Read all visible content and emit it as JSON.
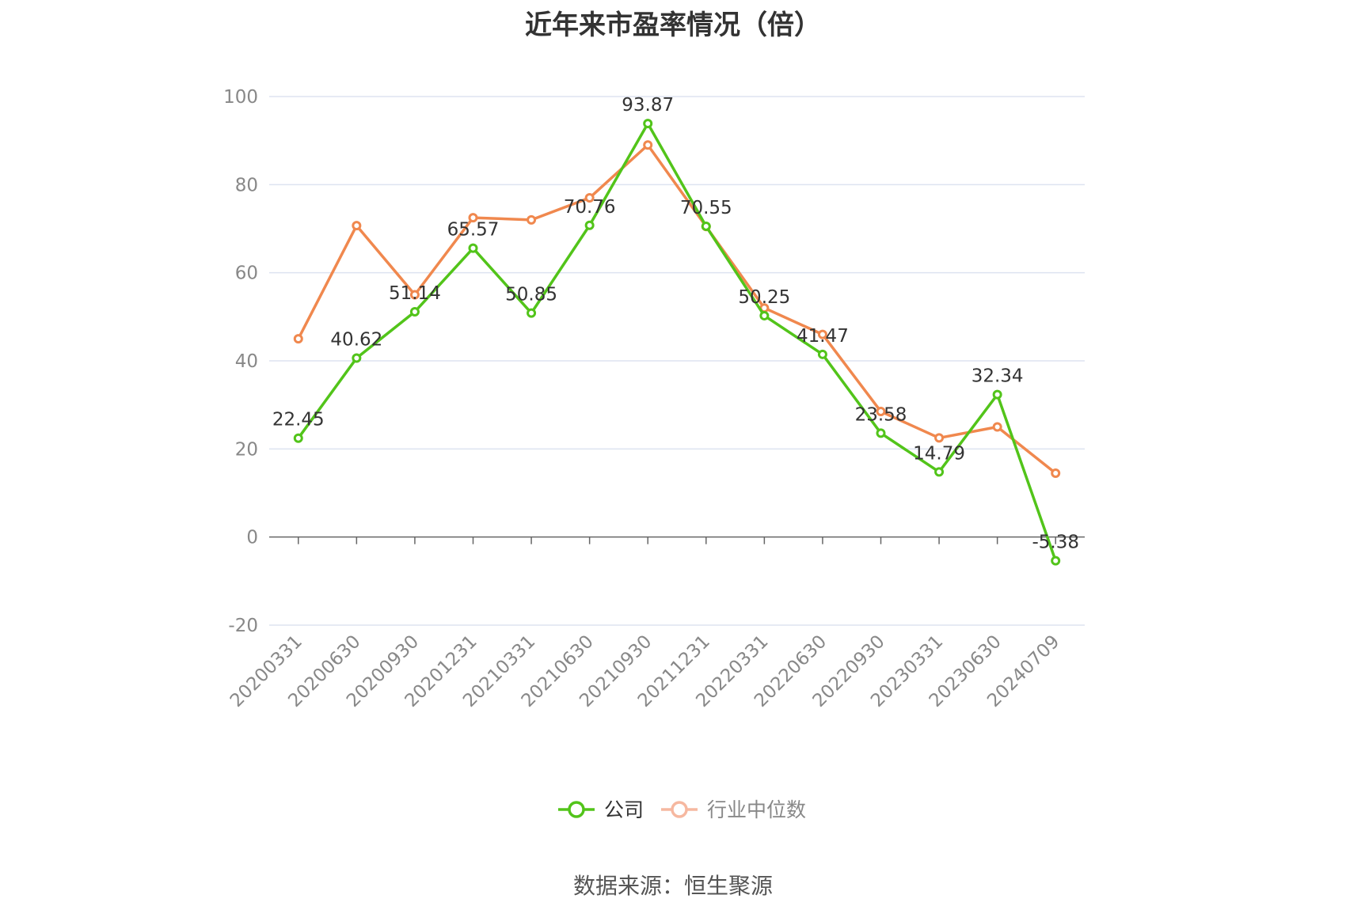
{
  "title": "近年来市盈率情况（倍）",
  "source": "数据来源：恒生聚源",
  "chart_data": {
    "type": "line",
    "title": "近年来市盈率情况（倍）",
    "xlabel": "",
    "ylabel": "",
    "ylim": [
      -20,
      100
    ],
    "yticks": [
      -20,
      0,
      20,
      40,
      60,
      80,
      100
    ],
    "grid": true,
    "legend_position": "bottom",
    "categories": [
      "20200331",
      "20200630",
      "20200930",
      "20201231",
      "20210331",
      "20210630",
      "20210930",
      "20211231",
      "20220331",
      "20220630",
      "20220930",
      "20230331",
      "20230630",
      "20240709"
    ],
    "series": [
      {
        "name": "公司",
        "color": "#52c41a",
        "values": [
          22.45,
          40.62,
          51.14,
          65.57,
          50.85,
          70.76,
          93.87,
          70.55,
          50.25,
          41.47,
          23.58,
          14.79,
          32.34,
          -5.38
        ],
        "labels": [
          "22.45",
          "40.62",
          "51.14",
          "65.57",
          "50.85",
          "70.76",
          "93.87",
          "70.55",
          "50.25",
          "41.47",
          "23.58",
          "14.79",
          "32.34",
          "-5.38"
        ]
      },
      {
        "name": "行业中位数",
        "color": "#f0884e",
        "values": [
          45.0,
          70.7,
          55.0,
          72.5,
          72.0,
          77.0,
          89.0,
          70.5,
          52.0,
          46.0,
          28.5,
          22.5,
          25.0,
          14.5
        ]
      }
    ]
  }
}
